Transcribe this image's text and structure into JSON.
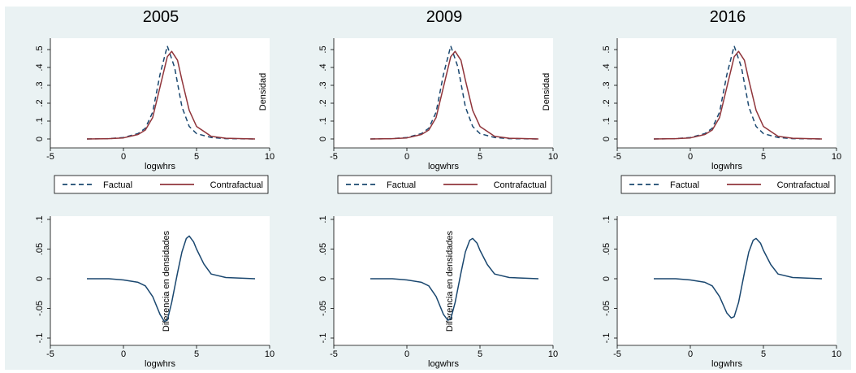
{
  "chart_data": [
    {
      "type": "line",
      "title": "2005",
      "xlabel": "logwhrs",
      "ylabel": "Densidad",
      "xlim": [
        -5,
        10
      ],
      "ylim": [
        0,
        0.55
      ],
      "xticks": [
        "-5",
        "0",
        "5",
        "10"
      ],
      "yticks": [
        ".5",
        ".4",
        ".3",
        ".2",
        ".1",
        "0"
      ],
      "series": [
        {
          "name": "Factual",
          "color": "#1a476f",
          "dash": true,
          "points": [
            [
              -2.5,
              0
            ],
            [
              -1,
              0.002
            ],
            [
              0,
              0.008
            ],
            [
              1,
              0.03
            ],
            [
              1.5,
              0.06
            ],
            [
              2,
              0.15
            ],
            [
              2.5,
              0.36
            ],
            [
              3,
              0.52
            ],
            [
              3.5,
              0.4
            ],
            [
              4,
              0.18
            ],
            [
              4.5,
              0.07
            ],
            [
              5,
              0.03
            ],
            [
              6,
              0.008
            ],
            [
              7,
              0.002
            ],
            [
              9,
              0
            ]
          ]
        },
        {
          "name": "Contrafactual",
          "color": "#90353b",
          "dash": false,
          "points": [
            [
              -2.5,
              0
            ],
            [
              -1,
              0.002
            ],
            [
              0,
              0.006
            ],
            [
              1,
              0.025
            ],
            [
              1.5,
              0.05
            ],
            [
              2,
              0.12
            ],
            [
              2.5,
              0.29
            ],
            [
              3,
              0.46
            ],
            [
              3.3,
              0.49
            ],
            [
              3.7,
              0.44
            ],
            [
              4,
              0.33
            ],
            [
              4.5,
              0.16
            ],
            [
              5,
              0.07
            ],
            [
              6,
              0.015
            ],
            [
              7,
              0.004
            ],
            [
              9,
              0
            ]
          ]
        }
      ],
      "legend": "bottom"
    },
    {
      "type": "line",
      "title": "2009",
      "xlabel": "logwhrs",
      "ylabel": "Densidad",
      "xlim": [
        -5,
        10
      ],
      "ylim": [
        0,
        0.55
      ],
      "xticks": [
        "-5",
        "0",
        "5",
        "10"
      ],
      "yticks": [
        ".5",
        ".4",
        ".3",
        ".2",
        ".1",
        "0"
      ],
      "series": [
        {
          "name": "Factual",
          "color": "#1a476f",
          "dash": true,
          "points": [
            [
              -2.5,
              0
            ],
            [
              -1,
              0.002
            ],
            [
              0,
              0.008
            ],
            [
              1,
              0.03
            ],
            [
              1.5,
              0.06
            ],
            [
              2,
              0.15
            ],
            [
              2.5,
              0.36
            ],
            [
              3,
              0.52
            ],
            [
              3.5,
              0.4
            ],
            [
              4,
              0.18
            ],
            [
              4.5,
              0.07
            ],
            [
              5,
              0.03
            ],
            [
              6,
              0.008
            ],
            [
              7,
              0.002
            ],
            [
              9,
              0
            ]
          ]
        },
        {
          "name": "Contrafactual",
          "color": "#90353b",
          "dash": false,
          "points": [
            [
              -2.5,
              0
            ],
            [
              -1,
              0.002
            ],
            [
              0,
              0.006
            ],
            [
              1,
              0.025
            ],
            [
              1.5,
              0.05
            ],
            [
              2,
              0.12
            ],
            [
              2.5,
              0.29
            ],
            [
              3,
              0.46
            ],
            [
              3.3,
              0.49
            ],
            [
              3.7,
              0.44
            ],
            [
              4,
              0.33
            ],
            [
              4.5,
              0.16
            ],
            [
              5,
              0.07
            ],
            [
              6,
              0.015
            ],
            [
              7,
              0.004
            ],
            [
              9,
              0
            ]
          ]
        }
      ],
      "legend": "bottom"
    },
    {
      "type": "line",
      "title": "2016",
      "xlabel": "logwhrs",
      "ylabel": "",
      "xlim": [
        -5,
        10
      ],
      "ylim": [
        0,
        0.55
      ],
      "xticks": [
        "-5",
        "0",
        "5",
        "10"
      ],
      "yticks": [
        ".5",
        ".4",
        ".3",
        ".2",
        ".1",
        "0"
      ],
      "series": [
        {
          "name": "Factual",
          "color": "#1a476f",
          "dash": true,
          "points": [
            [
              -2.5,
              0
            ],
            [
              -1,
              0.002
            ],
            [
              0,
              0.008
            ],
            [
              1,
              0.03
            ],
            [
              1.5,
              0.06
            ],
            [
              2,
              0.15
            ],
            [
              2.5,
              0.36
            ],
            [
              3,
              0.52
            ],
            [
              3.5,
              0.4
            ],
            [
              4,
              0.18
            ],
            [
              4.5,
              0.07
            ],
            [
              5,
              0.03
            ],
            [
              6,
              0.008
            ],
            [
              7,
              0.002
            ],
            [
              9,
              0
            ]
          ]
        },
        {
          "name": "Contrafactual",
          "color": "#90353b",
          "dash": false,
          "points": [
            [
              -2.5,
              0
            ],
            [
              -1,
              0.002
            ],
            [
              0,
              0.006
            ],
            [
              1,
              0.025
            ],
            [
              1.5,
              0.05
            ],
            [
              2,
              0.12
            ],
            [
              2.5,
              0.29
            ],
            [
              3,
              0.46
            ],
            [
              3.3,
              0.49
            ],
            [
              3.7,
              0.44
            ],
            [
              4,
              0.33
            ],
            [
              4.5,
              0.16
            ],
            [
              5,
              0.07
            ],
            [
              6,
              0.015
            ],
            [
              7,
              0.004
            ],
            [
              9,
              0
            ]
          ]
        }
      ],
      "legend": "bottom"
    },
    {
      "type": "line",
      "title": "",
      "xlabel": "logwhrs",
      "ylabel": "Diferencia en densidades",
      "xlim": [
        -5,
        10
      ],
      "ylim": [
        -0.1,
        0.1
      ],
      "xticks": [
        "-5",
        "0",
        "5",
        "10"
      ],
      "yticks": [
        ".1",
        ".05",
        "0",
        "-.05",
        "-.1"
      ],
      "series": [
        {
          "color": "#1a476f",
          "dash": false,
          "points": [
            [
              -2.5,
              0
            ],
            [
              -1,
              0
            ],
            [
              0,
              -0.002
            ],
            [
              1,
              -0.006
            ],
            [
              1.5,
              -0.012
            ],
            [
              2,
              -0.03
            ],
            [
              2.5,
              -0.06
            ],
            [
              2.8,
              -0.072
            ],
            [
              3,
              -0.07
            ],
            [
              3.3,
              -0.04
            ],
            [
              3.7,
              0.01
            ],
            [
              4,
              0.045
            ],
            [
              4.3,
              0.068
            ],
            [
              4.5,
              0.072
            ],
            [
              4.8,
              0.062
            ],
            [
              5,
              0.05
            ],
            [
              5.5,
              0.025
            ],
            [
              6,
              0.008
            ],
            [
              7,
              0.002
            ],
            [
              9,
              0
            ]
          ]
        }
      ]
    },
    {
      "type": "line",
      "title": "",
      "xlabel": "logwhrs",
      "ylabel": "Diferencia en densidades",
      "xlim": [
        -5,
        10
      ],
      "ylim": [
        -0.1,
        0.1
      ],
      "xticks": [
        "-5",
        "0",
        "5",
        "10"
      ],
      "yticks": [
        ".1",
        ".05",
        "0",
        "-.05",
        "-.1"
      ],
      "series": [
        {
          "color": "#1a476f",
          "dash": false,
          "points": [
            [
              -2.5,
              0
            ],
            [
              -1,
              0
            ],
            [
              0,
              -0.002
            ],
            [
              1,
              -0.006
            ],
            [
              1.5,
              -0.012
            ],
            [
              2,
              -0.03
            ],
            [
              2.5,
              -0.06
            ],
            [
              2.8,
              -0.07
            ],
            [
              3,
              -0.068
            ],
            [
              3.3,
              -0.04
            ],
            [
              3.7,
              0.01
            ],
            [
              4,
              0.045
            ],
            [
              4.3,
              0.065
            ],
            [
              4.5,
              0.068
            ],
            [
              4.8,
              0.06
            ],
            [
              5,
              0.048
            ],
            [
              5.5,
              0.024
            ],
            [
              6,
              0.008
            ],
            [
              7,
              0.002
            ],
            [
              9,
              0
            ]
          ]
        }
      ]
    },
    {
      "type": "line",
      "title": "",
      "xlabel": "logwhrs",
      "ylabel": "",
      "xlim": [
        -5,
        10
      ],
      "ylim": [
        -0.1,
        0.1
      ],
      "xticks": [
        "-5",
        "0",
        "5",
        "10"
      ],
      "yticks": [
        ".1",
        ".05",
        "0",
        "-.05",
        "-.1"
      ],
      "series": [
        {
          "color": "#1a476f",
          "dash": false,
          "points": [
            [
              -2.5,
              0
            ],
            [
              -1,
              0
            ],
            [
              0,
              -0.002
            ],
            [
              1,
              -0.006
            ],
            [
              1.5,
              -0.012
            ],
            [
              2,
              -0.03
            ],
            [
              2.5,
              -0.058
            ],
            [
              2.8,
              -0.066
            ],
            [
              3,
              -0.064
            ],
            [
              3.3,
              -0.04
            ],
            [
              3.7,
              0.01
            ],
            [
              4,
              0.045
            ],
            [
              4.3,
              0.065
            ],
            [
              4.5,
              0.068
            ],
            [
              4.8,
              0.06
            ],
            [
              5,
              0.048
            ],
            [
              5.5,
              0.024
            ],
            [
              6,
              0.008
            ],
            [
              7,
              0.002
            ],
            [
              9,
              0
            ]
          ]
        }
      ]
    }
  ]
}
